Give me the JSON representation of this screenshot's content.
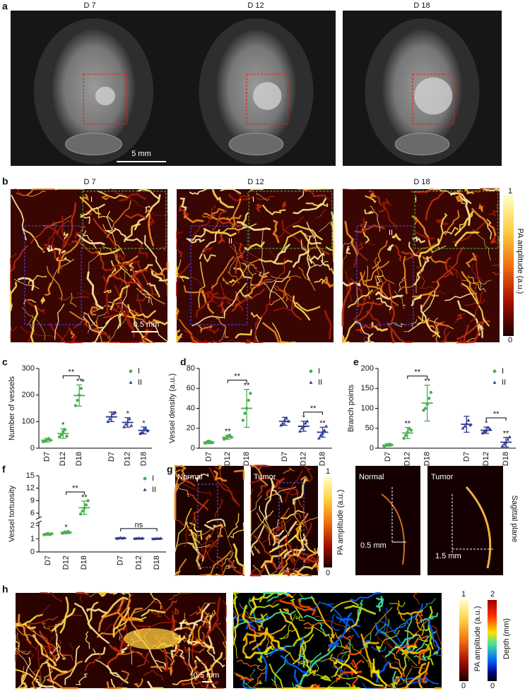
{
  "panel_labels": [
    "a",
    "b",
    "c",
    "d",
    "e",
    "f",
    "g",
    "h"
  ],
  "panel_a": {
    "titles": [
      "D 7",
      "D 12",
      "D 18"
    ],
    "scale_bar": "5 mm"
  },
  "panel_b": {
    "titles": [
      "D 7",
      "D 12",
      "D 18"
    ],
    "regions": [
      "I",
      "II"
    ],
    "scale_bar": "0.5 mm",
    "colorbar": {
      "max": 1,
      "min": 0,
      "label": "PA amplitude (a.u.)"
    }
  },
  "panel_g": {
    "coronal_titles": [
      "Normal",
      "Tumor"
    ],
    "colorbar": {
      "max": 1,
      "min": 0,
      "label": "PA amplitude (a.u.)"
    },
    "sagittal_titles": [
      "Normal",
      "Tumor"
    ],
    "depths": [
      "0.5 mm",
      "1.5 mm"
    ],
    "plane": "Sagittal plane"
  },
  "panel_h": {
    "scale_bar": "0.5 mm",
    "amplitude_colorbar": {
      "max": 1,
      "min": 0,
      "label": "PA amplitude (a.u.)"
    },
    "depth_colorbar": {
      "max": 2,
      "min": 0,
      "label": "Depth (mm)"
    }
  },
  "chart_data": [
    {
      "type": "dot",
      "y_label": "Number of vessels",
      "categories": [
        "D7",
        "D12",
        "D18",
        "D7",
        "D12",
        "D18"
      ],
      "ylim": [
        0,
        300
      ],
      "yticks": [
        0,
        100,
        200,
        300
      ],
      "series": [
        {
          "name": "I",
          "color": "#4caf50",
          "values": [
            30,
            55,
            198,
            null,
            null,
            null
          ],
          "errors": [
            7,
            18,
            40,
            null,
            null,
            null
          ],
          "points": [
            [
              24,
              28,
              33,
              36,
              30
            ],
            [
              42,
              50,
              62,
              70,
              45
            ],
            [
              160,
              180,
              200,
              225,
              255
            ],
            null,
            null,
            null
          ],
          "sig_labels": [
            null,
            "*",
            "**",
            null,
            null,
            null
          ],
          "bracket": {
            "label": "**",
            "categories": [
              "D12",
              "D18"
            ]
          }
        },
        {
          "name": "II",
          "color": "#2b3990",
          "values": [
            null,
            null,
            null,
            118,
            97,
            67
          ],
          "errors": [
            null,
            null,
            null,
            18,
            18,
            13
          ],
          "points": [
            null,
            null,
            null,
            [
              100,
              110,
              120,
              130,
              135
            ],
            [
              80,
              90,
              100,
              110,
              85
            ],
            [
              55,
              60,
              70,
              75,
              65
            ]
          ],
          "sig_labels": [
            null,
            null,
            null,
            null,
            "*",
            "*"
          ]
        }
      ]
    },
    {
      "type": "dot",
      "y_label": "Vessel density (a.u.)",
      "categories": [
        "D7",
        "D12",
        "D18",
        "D7",
        "D12",
        "D18"
      ],
      "ylim": [
        0,
        80
      ],
      "yticks": [
        0,
        20,
        40,
        60,
        80
      ],
      "series": [
        {
          "name": "I",
          "color": "#4caf50",
          "values": [
            6,
            11,
            40,
            null,
            null,
            null
          ],
          "errors": [
            1.5,
            2,
            19,
            null,
            null,
            null
          ],
          "points": [
            [
              5,
              6,
              7,
              6,
              5.5
            ],
            [
              9,
              10,
              12,
              13,
              11
            ],
            [
              28,
              35,
              40,
              48,
              55
            ],
            null,
            null,
            null
          ],
          "sig_labels": [
            null,
            "**",
            "**",
            null,
            null,
            null
          ],
          "bracket": {
            "label": "**",
            "categories": [
              "D12",
              "D18"
            ]
          }
        },
        {
          "name": "II",
          "color": "#2b3990",
          "values": [
            null,
            null,
            null,
            27,
            22,
            16
          ],
          "errors": [
            null,
            null,
            null,
            4,
            5,
            5
          ],
          "points": [
            null,
            null,
            null,
            [
              23,
              25,
              28,
              30,
              27
            ],
            [
              17,
              20,
              22,
              25,
              27
            ],
            [
              10,
              13,
              15,
              18,
              22
            ]
          ],
          "sig_labels": [
            null,
            null,
            null,
            null,
            "*",
            "**"
          ],
          "bracket": {
            "label": "**",
            "categories": [
              "D12",
              "D18"
            ]
          }
        }
      ]
    },
    {
      "type": "dot",
      "y_label": "Branch points",
      "categories": [
        "D7",
        "D12",
        "D18",
        "D7",
        "D12",
        "D18"
      ],
      "ylim": [
        0,
        200
      ],
      "yticks": [
        0,
        50,
        100,
        150,
        200
      ],
      "series": [
        {
          "name": "I",
          "color": "#4caf50",
          "values": [
            8,
            38,
            113,
            null,
            null,
            null
          ],
          "errors": [
            3,
            14,
            45,
            null,
            null,
            null
          ],
          "points": [
            [
              5,
              7,
              9,
              10,
              8
            ],
            [
              25,
              32,
              40,
              48,
              45
            ],
            [
              95,
              100,
              110,
              125,
              140
            ],
            null,
            null,
            null
          ],
          "sig_labels": [
            null,
            "**",
            "**",
            null,
            null,
            null
          ],
          "bracket": {
            "label": "**",
            "categories": [
              "D12",
              "D18"
            ]
          }
        },
        {
          "name": "II",
          "color": "#2b3990",
          "values": [
            null,
            null,
            null,
            60,
            45,
            15
          ],
          "errors": [
            null,
            null,
            null,
            20,
            8,
            12
          ],
          "points": [
            null,
            null,
            null,
            [
              50,
              55,
              62,
              70,
              58
            ],
            [
              38,
              42,
              45,
              52,
              48
            ],
            [
              5,
              10,
              15,
              22,
              28
            ]
          ],
          "sig_labels": [
            null,
            null,
            null,
            null,
            "*",
            "**"
          ],
          "bracket": {
            "label": "**",
            "categories": [
              "D12",
              "D18"
            ]
          }
        }
      ]
    },
    {
      "type": "dot",
      "y_label": "Vessel tortuosity",
      "categories": [
        "D7",
        "D12",
        "D18",
        "D7",
        "D12",
        "D18"
      ],
      "ylim": [
        0,
        15
      ],
      "ybreak": [
        2.2,
        5
      ],
      "yticks": [
        0,
        1,
        2,
        6,
        9,
        12,
        15
      ],
      "series": [
        {
          "name": "I",
          "color": "#4caf50",
          "values": [
            1.35,
            1.48,
            7.3,
            null,
            null,
            null
          ],
          "errors": [
            0.08,
            0.1,
            1.6,
            null,
            null,
            null
          ],
          "points": [
            [
              1.3,
              1.35,
              1.4,
              1.32,
              1.38
            ],
            [
              1.42,
              1.45,
              1.5,
              1.55,
              1.48
            ],
            [
              5.8,
              6.5,
              7.2,
              8,
              9
            ],
            null,
            null,
            null
          ],
          "sig_labels": [
            null,
            "*",
            "**",
            null,
            null,
            null
          ],
          "bracket": {
            "label": "**",
            "categories": [
              "D12",
              "D18"
            ]
          }
        },
        {
          "name": "II",
          "color": "#2b3990",
          "values": [
            null,
            null,
            null,
            1.05,
            1.03,
            1.01
          ],
          "errors": [
            null,
            null,
            null,
            0.03,
            0.02,
            0.02
          ],
          "points": [
            null,
            null,
            null,
            [
              1.02,
              1.05,
              1.08,
              1.04,
              1.06
            ],
            [
              1.01,
              1.03,
              1.05,
              1.02,
              1.04
            ],
            [
              0.99,
              1.0,
              1.02,
              1.01,
              1.03
            ]
          ],
          "sig_labels": [
            null,
            null,
            null,
            null,
            null,
            null
          ],
          "bracket": {
            "label": "ns",
            "categories": [
              "D7",
              "D18"
            ]
          }
        }
      ]
    }
  ]
}
